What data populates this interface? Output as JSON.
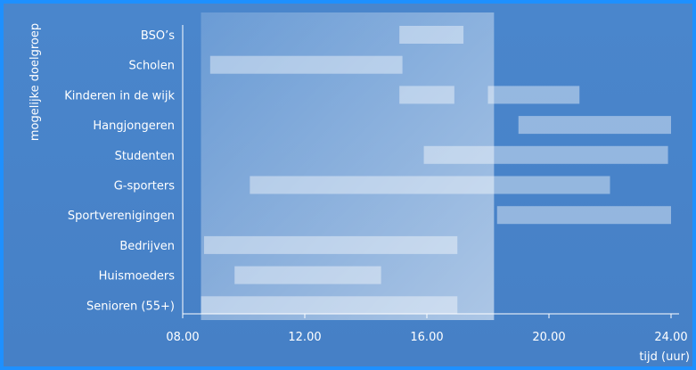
{
  "chart_data": {
    "type": "bar",
    "orientation": "horizontal-ranges",
    "title": "",
    "xlabel": "tijd (uur)",
    "ylabel": "mogelijke doelgroep",
    "xlim": [
      8,
      24
    ],
    "xticks": [
      "08.00",
      "12.00",
      "16.00",
      "20.00",
      "24.00"
    ],
    "highlight_range": [
      8.6,
      18.2
    ],
    "categories": [
      "BSO’s",
      "Scholen",
      "Kinderen in de wijk",
      "Hangjongeren",
      "Studenten",
      "G-sporters",
      "Sportverenigingen",
      "Bedrijven",
      "Huismoeders",
      "Senioren (55+)"
    ],
    "ranges": [
      [
        [
          15.1,
          17.2
        ]
      ],
      [
        [
          8.9,
          15.2
        ]
      ],
      [
        [
          15.1,
          16.9
        ],
        [
          18.0,
          21.0
        ]
      ],
      [
        [
          19.0,
          24.0
        ]
      ],
      [
        [
          15.9,
          23.9
        ]
      ],
      [
        [
          10.2,
          22.0
        ]
      ],
      [
        [
          18.3,
          24.0
        ]
      ],
      [
        [
          8.7,
          17.0
        ]
      ],
      [
        [
          9.7,
          14.5
        ]
      ],
      [
        [
          8.6,
          17.0
        ]
      ]
    ],
    "grid": false,
    "colors": {
      "background": "#4682c8",
      "border": "#1e90ff",
      "bar": "#e6f0fa",
      "highlight": "#c8def4"
    }
  }
}
